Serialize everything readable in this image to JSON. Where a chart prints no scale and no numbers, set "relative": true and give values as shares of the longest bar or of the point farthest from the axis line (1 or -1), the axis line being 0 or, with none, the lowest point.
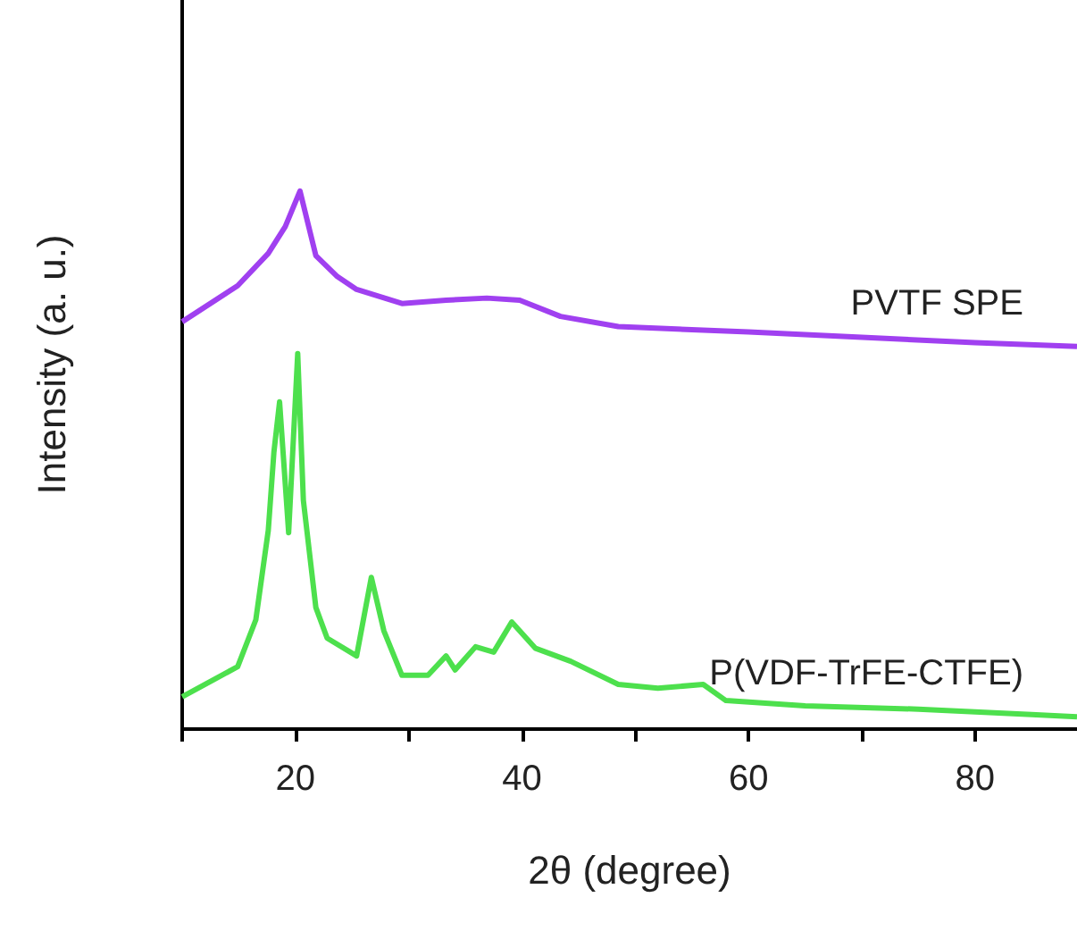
{
  "chart_data": {
    "type": "line",
    "xlabel": "2θ (degree)",
    "ylabel": "Intensity (a. u.)",
    "relative": true,
    "xlim": [
      10,
      89
    ],
    "xticks": [
      {
        "value": 10,
        "label": null
      },
      20,
      {
        "value": 30,
        "label": null
      },
      40,
      {
        "value": 50,
        "label": null
      },
      60,
      {
        "value": 70,
        "label": null
      },
      80
    ],
    "grid": false,
    "marker": "none",
    "line_style": "solid",
    "series": [
      {
        "name": "PVTF SPE",
        "color": "#a040f0",
        "x": [
          10,
          14.9,
          17.6,
          19.1,
          20.4,
          21.8,
          23.7,
          25.4,
          29.4,
          33.3,
          36.9,
          39.8,
          43.4,
          48.5,
          60,
          70,
          80,
          89
        ],
        "values": [
          0.757,
          0.824,
          0.884,
          0.934,
          1.0,
          0.88,
          0.841,
          0.817,
          0.791,
          0.797,
          0.801,
          0.797,
          0.767,
          0.748,
          0.738,
          0.728,
          0.718,
          0.711
        ]
      },
      {
        "name": "P(VDF-TrFE-CTFE)",
        "color": "#4de04d",
        "x": [
          10,
          14.9,
          16.5,
          17.6,
          18.1,
          18.6,
          19.4,
          20.2,
          20.7,
          21.8,
          22.8,
          25.4,
          26.7,
          27.8,
          29.4,
          31.7,
          33.3,
          34.1,
          35.9,
          37.5,
          39.1,
          41.2,
          44.3,
          48.5,
          52,
          56,
          58,
          65,
          75,
          85,
          89
        ],
        "values": [
          0.06,
          0.116,
          0.203,
          0.369,
          0.515,
          0.608,
          0.365,
          0.698,
          0.425,
          0.226,
          0.169,
          0.136,
          0.282,
          0.183,
          0.1,
          0.1,
          0.136,
          0.11,
          0.153,
          0.143,
          0.199,
          0.15,
          0.126,
          0.083,
          0.076,
          0.083,
          0.053,
          0.043,
          0.037,
          0.027,
          0.023
        ]
      }
    ]
  }
}
